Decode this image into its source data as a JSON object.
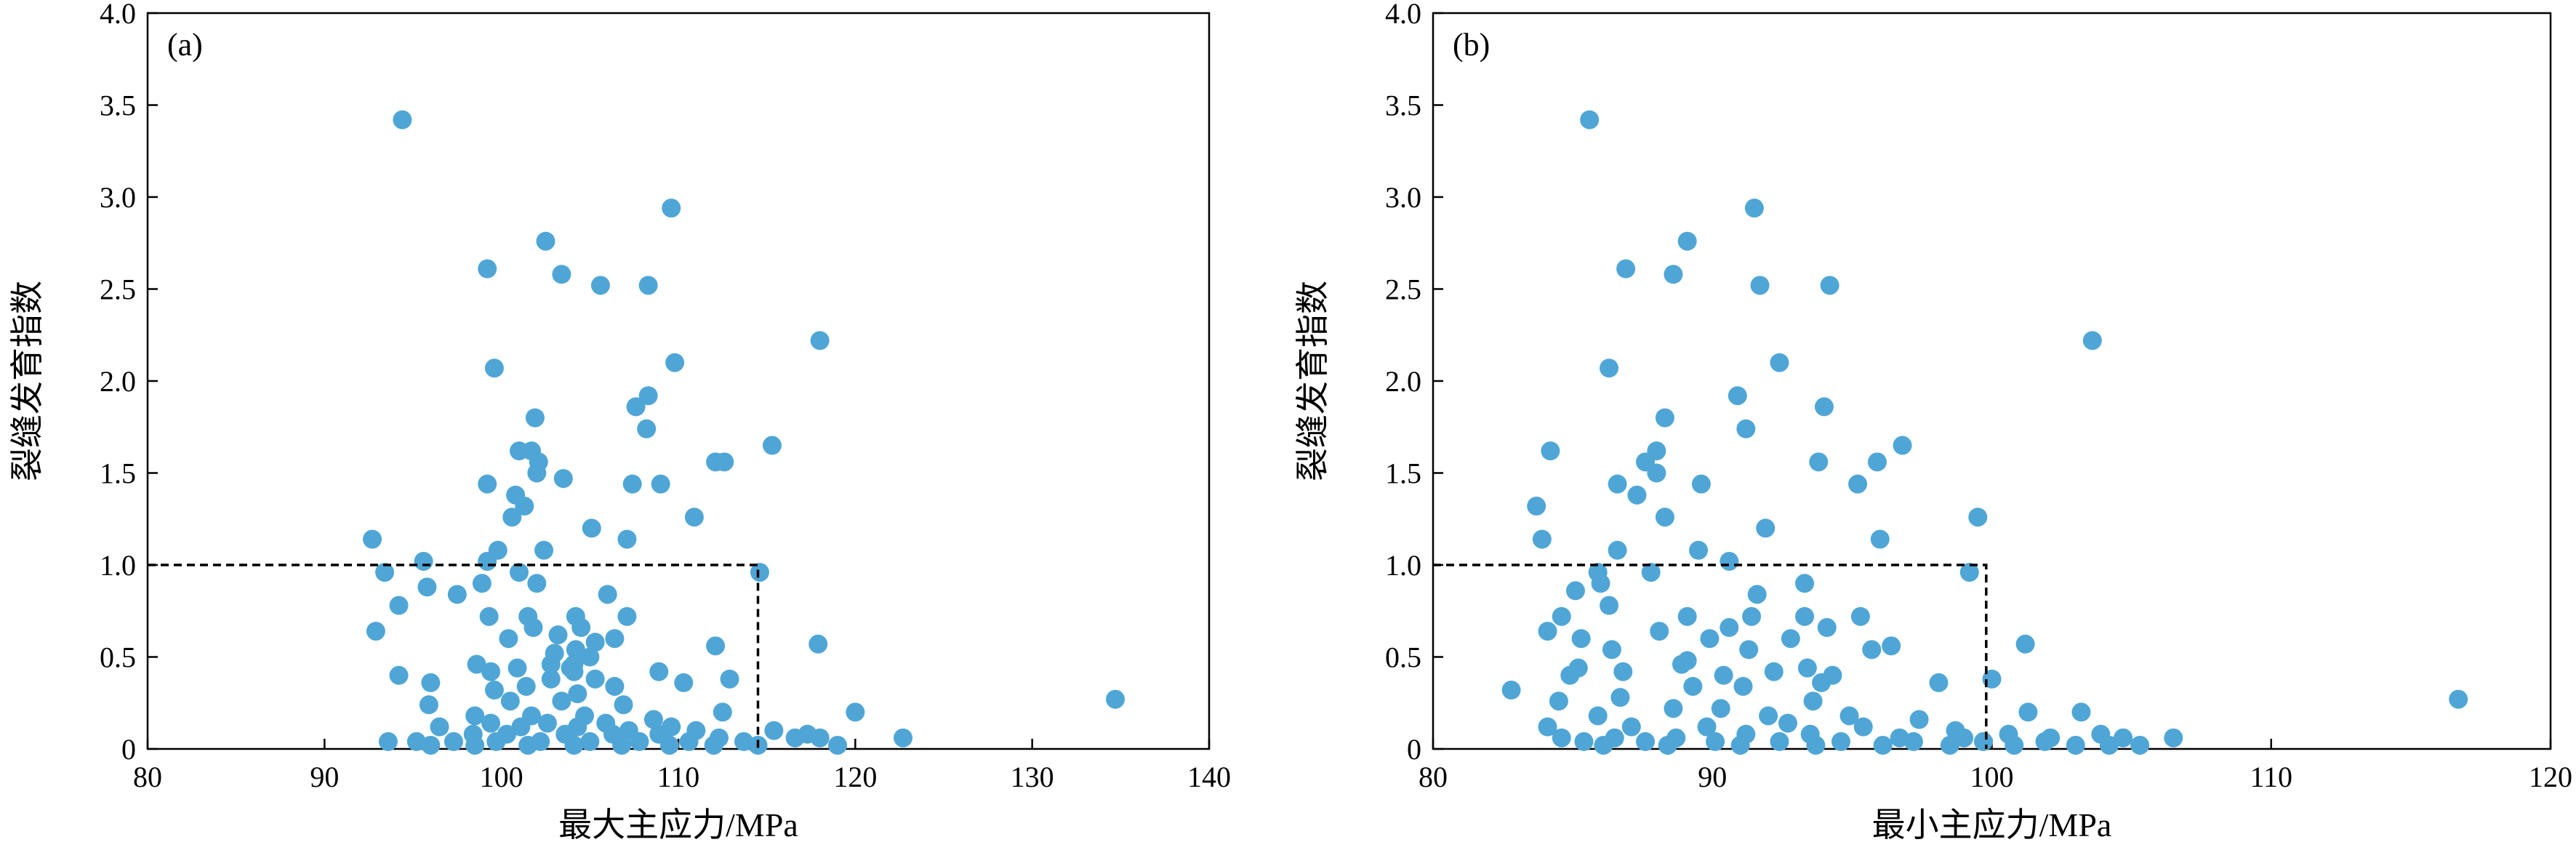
{
  "chart_data": [
    {
      "type": "scatter",
      "panel_label": "(a)",
      "xlabel": "最大主应力/MPa",
      "ylabel": "裂缝发育指数",
      "xlim": [
        80,
        140
      ],
      "ylim": [
        0,
        4.0
      ],
      "xticks": [
        80,
        90,
        100,
        110,
        120,
        130,
        140
      ],
      "xtick_labels": [
        "80",
        "90",
        "100",
        "110",
        "120",
        "130",
        "140"
      ],
      "yticks": [
        0,
        0.5,
        1.0,
        1.5,
        2.0,
        2.5,
        3.0,
        3.5,
        4.0
      ],
      "ytick_labels": [
        "0",
        "0.5",
        "1.0",
        "1.5",
        "2.0",
        "2.5",
        "3.0",
        "3.5",
        "4.0"
      ],
      "grid": false,
      "marker_color": "#4fa6d6",
      "threshold_box": {
        "x_max": 114.5,
        "y_max": 1.0,
        "style": "dashed"
      },
      "points": [
        [
          94.4,
          3.42
        ],
        [
          109.6,
          2.94
        ],
        [
          102.5,
          2.76
        ],
        [
          99.2,
          2.61
        ],
        [
          103.4,
          2.58
        ],
        [
          105.6,
          2.52
        ],
        [
          108.3,
          2.52
        ],
        [
          118.0,
          2.22
        ],
        [
          99.6,
          2.07
        ],
        [
          109.8,
          2.1
        ],
        [
          108.3,
          1.92
        ],
        [
          107.6,
          1.86
        ],
        [
          101.9,
          1.8
        ],
        [
          108.2,
          1.74
        ],
        [
          101.0,
          1.62
        ],
        [
          101.7,
          1.62
        ],
        [
          102.1,
          1.56
        ],
        [
          115.3,
          1.65
        ],
        [
          112.6,
          1.56
        ],
        [
          112.1,
          1.56
        ],
        [
          99.2,
          1.44
        ],
        [
          103.5,
          1.47
        ],
        [
          107.4,
          1.44
        ],
        [
          109.0,
          1.44
        ],
        [
          100.8,
          1.38
        ],
        [
          101.3,
          1.32
        ],
        [
          102.0,
          1.5
        ],
        [
          110.9,
          1.26
        ],
        [
          100.6,
          1.26
        ],
        [
          105.1,
          1.2
        ],
        [
          92.7,
          1.14
        ],
        [
          107.1,
          1.14
        ],
        [
          99.8,
          1.08
        ],
        [
          102.4,
          1.08
        ],
        [
          95.6,
          1.02
        ],
        [
          99.2,
          1.02
        ],
        [
          93.4,
          0.96
        ],
        [
          101.0,
          0.96
        ],
        [
          114.6,
          0.96
        ],
        [
          98.9,
          0.9
        ],
        [
          95.8,
          0.88
        ],
        [
          102.0,
          0.9
        ],
        [
          97.5,
          0.84
        ],
        [
          106.0,
          0.84
        ],
        [
          94.2,
          0.78
        ],
        [
          99.3,
          0.72
        ],
        [
          101.5,
          0.72
        ],
        [
          104.2,
          0.72
        ],
        [
          107.1,
          0.72
        ],
        [
          101.8,
          0.66
        ],
        [
          104.5,
          0.66
        ],
        [
          92.9,
          0.64
        ],
        [
          103.2,
          0.62
        ],
        [
          105.3,
          0.58
        ],
        [
          100.4,
          0.6
        ],
        [
          106.4,
          0.6
        ],
        [
          112.1,
          0.56
        ],
        [
          117.9,
          0.57
        ],
        [
          104.2,
          0.54
        ],
        [
          103.0,
          0.52
        ],
        [
          105.0,
          0.5
        ],
        [
          98.6,
          0.46
        ],
        [
          104.1,
          0.46
        ],
        [
          102.8,
          0.46
        ],
        [
          100.9,
          0.44
        ],
        [
          103.9,
          0.44
        ],
        [
          108.9,
          0.42
        ],
        [
          94.2,
          0.4
        ],
        [
          99.4,
          0.42
        ],
        [
          104.1,
          0.42
        ],
        [
          105.3,
          0.38
        ],
        [
          102.8,
          0.38
        ],
        [
          96.0,
          0.36
        ],
        [
          110.3,
          0.36
        ],
        [
          112.9,
          0.38
        ],
        [
          101.4,
          0.34
        ],
        [
          106.4,
          0.34
        ],
        [
          99.6,
          0.32
        ],
        [
          104.3,
          0.3
        ],
        [
          95.9,
          0.24
        ],
        [
          100.5,
          0.26
        ],
        [
          103.4,
          0.26
        ],
        [
          106.9,
          0.24
        ],
        [
          112.5,
          0.2
        ],
        [
          120.0,
          0.2
        ],
        [
          134.7,
          0.27
        ],
        [
          98.5,
          0.18
        ],
        [
          101.7,
          0.18
        ],
        [
          104.7,
          0.18
        ],
        [
          108.6,
          0.16
        ],
        [
          99.4,
          0.14
        ],
        [
          102.6,
          0.14
        ],
        [
          105.9,
          0.14
        ],
        [
          109.6,
          0.12
        ],
        [
          96.5,
          0.12
        ],
        [
          101.1,
          0.12
        ],
        [
          104.3,
          0.12
        ],
        [
          107.2,
          0.1
        ],
        [
          111.0,
          0.1
        ],
        [
          115.4,
          0.1
        ],
        [
          117.3,
          0.08
        ],
        [
          98.4,
          0.08
        ],
        [
          100.3,
          0.08
        ],
        [
          103.6,
          0.08
        ],
        [
          106.3,
          0.08
        ],
        [
          108.9,
          0.08
        ],
        [
          112.3,
          0.06
        ],
        [
          116.6,
          0.06
        ],
        [
          118.0,
          0.06
        ],
        [
          122.7,
          0.06
        ],
        [
          93.6,
          0.04
        ],
        [
          95.2,
          0.04
        ],
        [
          97.3,
          0.04
        ],
        [
          99.7,
          0.04
        ],
        [
          102.2,
          0.04
        ],
        [
          105.0,
          0.04
        ],
        [
          107.8,
          0.04
        ],
        [
          110.6,
          0.04
        ],
        [
          113.7,
          0.04
        ],
        [
          119.0,
          0.02
        ],
        [
          96.0,
          0.02
        ],
        [
          98.5,
          0.02
        ],
        [
          101.5,
          0.02
        ],
        [
          104.1,
          0.02
        ],
        [
          106.8,
          0.02
        ],
        [
          109.5,
          0.02
        ],
        [
          112.0,
          0.02
        ],
        [
          114.5,
          0.02
        ]
      ]
    },
    {
      "type": "scatter",
      "panel_label": "(b)",
      "xlabel": "最小主应力/MPa",
      "ylabel": "裂缝发育指数",
      "xlim": [
        80,
        120
      ],
      "ylim": [
        0,
        4.0
      ],
      "xticks": [
        80,
        90,
        100,
        110,
        120
      ],
      "xtick_labels": [
        "80",
        "90",
        "100",
        "110",
        "120"
      ],
      "yticks": [
        0,
        0.5,
        1.0,
        1.5,
        2.0,
        2.5,
        3.0,
        3.5,
        4.0
      ],
      "ytick_labels": [
        "0",
        "0.5",
        "1.0",
        "1.5",
        "2.0",
        "2.5",
        "3.0",
        "3.5",
        "4.0"
      ],
      "grid": false,
      "marker_color": "#4fa6d6",
      "threshold_box": {
        "x_max": 99.8,
        "y_max": 1.0,
        "style": "dashed"
      },
      "points": [
        [
          85.6,
          3.42
        ],
        [
          91.5,
          2.94
        ],
        [
          89.1,
          2.76
        ],
        [
          86.9,
          2.61
        ],
        [
          88.6,
          2.58
        ],
        [
          91.7,
          2.52
        ],
        [
          94.2,
          2.52
        ],
        [
          103.6,
          2.22
        ],
        [
          86.3,
          2.07
        ],
        [
          92.4,
          2.1
        ],
        [
          90.9,
          1.92
        ],
        [
          94.0,
          1.86
        ],
        [
          88.3,
          1.8
        ],
        [
          91.2,
          1.74
        ],
        [
          84.2,
          1.62
        ],
        [
          88.0,
          1.62
        ],
        [
          87.6,
          1.56
        ],
        [
          95.9,
          1.56
        ],
        [
          93.8,
          1.56
        ],
        [
          96.8,
          1.65
        ],
        [
          86.6,
          1.44
        ],
        [
          88.0,
          1.5
        ],
        [
          89.6,
          1.44
        ],
        [
          95.2,
          1.44
        ],
        [
          87.3,
          1.38
        ],
        [
          83.7,
          1.32
        ],
        [
          88.3,
          1.26
        ],
        [
          99.5,
          1.26
        ],
        [
          91.9,
          1.2
        ],
        [
          83.9,
          1.14
        ],
        [
          96.0,
          1.14
        ],
        [
          86.6,
          1.08
        ],
        [
          89.5,
          1.08
        ],
        [
          90.6,
          1.02
        ],
        [
          85.9,
          0.96
        ],
        [
          87.8,
          0.96
        ],
        [
          99.2,
          0.96
        ],
        [
          86.0,
          0.9
        ],
        [
          93.3,
          0.9
        ],
        [
          85.1,
          0.86
        ],
        [
          86.3,
          0.78
        ],
        [
          91.6,
          0.84
        ],
        [
          89.1,
          0.72
        ],
        [
          84.6,
          0.72
        ],
        [
          91.4,
          0.72
        ],
        [
          93.3,
          0.72
        ],
        [
          95.3,
          0.72
        ],
        [
          84.1,
          0.64
        ],
        [
          88.1,
          0.64
        ],
        [
          90.6,
          0.66
        ],
        [
          94.1,
          0.66
        ],
        [
          85.3,
          0.6
        ],
        [
          89.9,
          0.6
        ],
        [
          92.8,
          0.6
        ],
        [
          86.4,
          0.54
        ],
        [
          91.3,
          0.54
        ],
        [
          95.7,
          0.54
        ],
        [
          101.2,
          0.57
        ],
        [
          96.4,
          0.56
        ],
        [
          89.1,
          0.48
        ],
        [
          93.4,
          0.44
        ],
        [
          85.2,
          0.44
        ],
        [
          88.9,
          0.46
        ],
        [
          92.2,
          0.42
        ],
        [
          90.4,
          0.4
        ],
        [
          94.3,
          0.4
        ],
        [
          84.9,
          0.4
        ],
        [
          86.8,
          0.42
        ],
        [
          98.1,
          0.36
        ],
        [
          93.9,
          0.36
        ],
        [
          82.8,
          0.32
        ],
        [
          100.0,
          0.38
        ],
        [
          89.3,
          0.34
        ],
        [
          91.1,
          0.34
        ],
        [
          84.5,
          0.26
        ],
        [
          86.7,
          0.28
        ],
        [
          93.6,
          0.26
        ],
        [
          88.6,
          0.22
        ],
        [
          90.3,
          0.22
        ],
        [
          101.3,
          0.2
        ],
        [
          103.2,
          0.2
        ],
        [
          116.7,
          0.27
        ],
        [
          85.9,
          0.18
        ],
        [
          92.0,
          0.18
        ],
        [
          94.9,
          0.18
        ],
        [
          97.4,
          0.16
        ],
        [
          84.1,
          0.12
        ],
        [
          87.1,
          0.12
        ],
        [
          89.8,
          0.12
        ],
        [
          92.7,
          0.14
        ],
        [
          95.4,
          0.12
        ],
        [
          98.7,
          0.1
        ],
        [
          100.6,
          0.08
        ],
        [
          103.9,
          0.08
        ],
        [
          84.6,
          0.06
        ],
        [
          86.5,
          0.06
        ],
        [
          88.7,
          0.06
        ],
        [
          91.2,
          0.08
        ],
        [
          93.5,
          0.08
        ],
        [
          96.7,
          0.06
        ],
        [
          99.0,
          0.06
        ],
        [
          102.1,
          0.06
        ],
        [
          104.7,
          0.06
        ],
        [
          106.5,
          0.06
        ],
        [
          85.4,
          0.04
        ],
        [
          87.6,
          0.04
        ],
        [
          90.1,
          0.04
        ],
        [
          92.4,
          0.04
        ],
        [
          94.6,
          0.04
        ],
        [
          97.2,
          0.04
        ],
        [
          99.7,
          0.04
        ],
        [
          101.9,
          0.04
        ],
        [
          105.3,
          0.02
        ],
        [
          104.2,
          0.02
        ],
        [
          86.1,
          0.02
        ],
        [
          88.4,
          0.02
        ],
        [
          91.0,
          0.02
        ],
        [
          93.7,
          0.02
        ],
        [
          96.1,
          0.02
        ],
        [
          98.5,
          0.02
        ],
        [
          100.8,
          0.02
        ],
        [
          103.0,
          0.02
        ]
      ]
    }
  ]
}
